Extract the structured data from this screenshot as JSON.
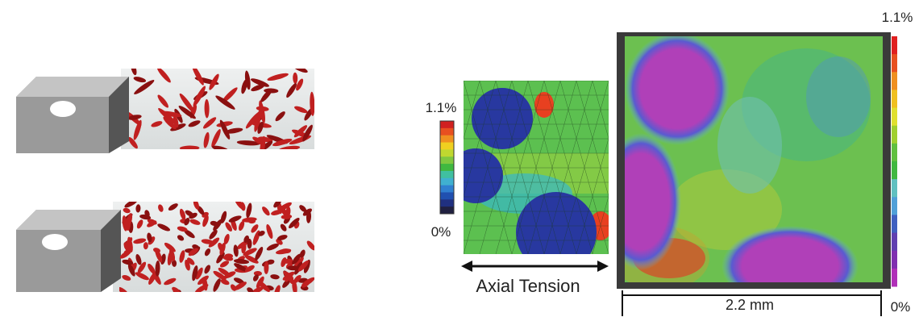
{
  "left_colorbar": {
    "max_label": "1.1%",
    "min_label": "0%"
  },
  "annotation": "Axial Tension",
  "right_colorbar": {
    "max_label": "1.1%",
    "min_label": "0%"
  },
  "scale_bar": "2.2 mm"
}
